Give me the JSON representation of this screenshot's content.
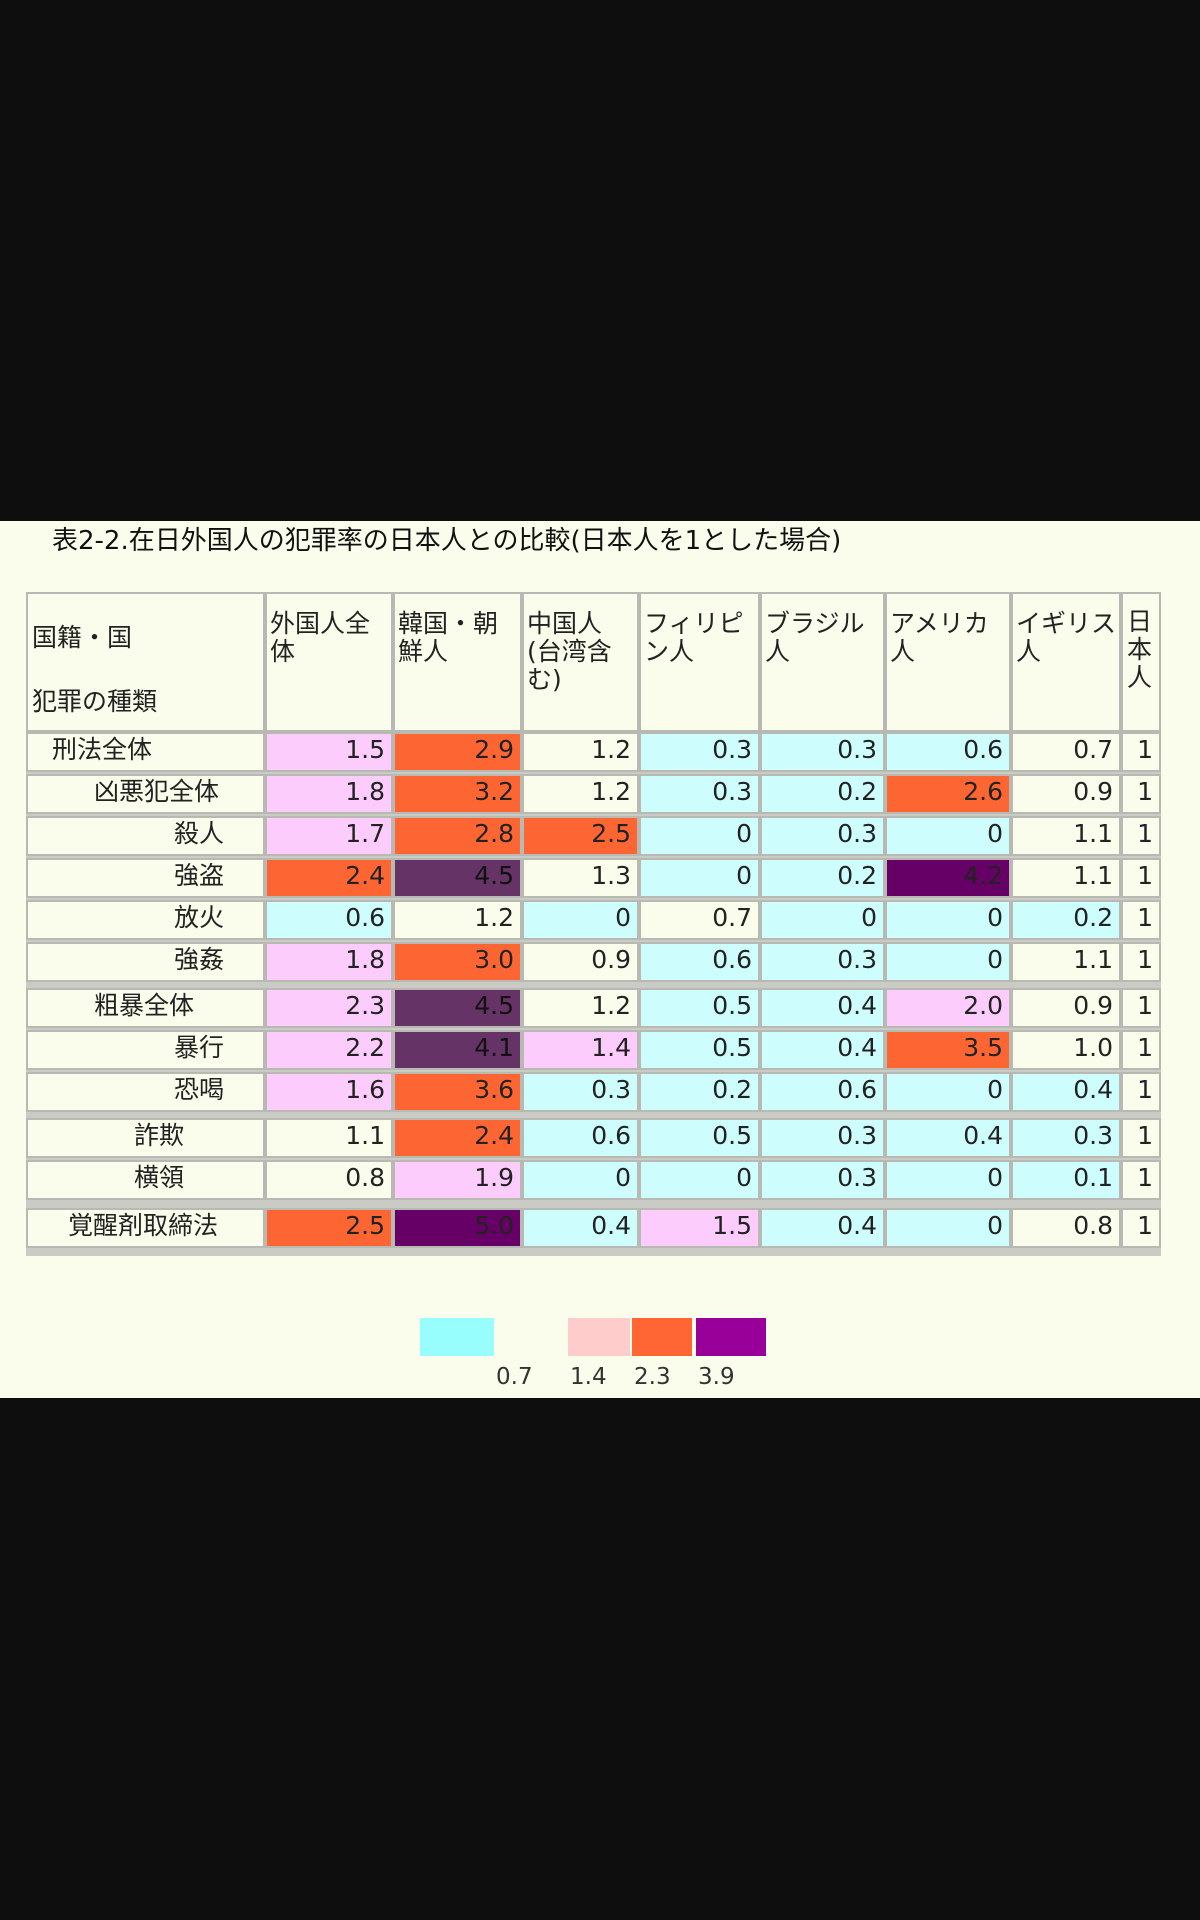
{
  "title": "表2-2.在日外国人の犯罪率の日本人との比較(日本人を1とした場合)",
  "corner": {
    "line1": "国籍・国",
    "line2": "犯罪の種類"
  },
  "columns": [
    "外国人全体",
    "韓国・朝鮮人",
    "中国人(台湾含む)",
    "フィリピン人",
    "ブラジル人",
    "アメリカ人",
    "イギリス人",
    "日本人"
  ],
  "column_header_lines": [
    [
      "外国人全",
      "体"
    ],
    [
      "韓国・朝",
      "鮮人"
    ],
    [
      "中国人",
      "(台湾含",
      "む)"
    ],
    [
      "フィリピ",
      "ン人"
    ],
    [
      "ブラジル",
      "人"
    ],
    [
      "アメリカ",
      "人"
    ],
    [
      "イギリス",
      "人"
    ],
    [
      "日",
      "本",
      "人"
    ]
  ],
  "row_labels": [
    "刑法全体",
    "凶悪犯全体",
    "殺人",
    "強盗",
    "放火",
    "強姦",
    "粗暴全体",
    "暴行",
    "恐喝",
    "詐欺",
    "横領",
    "覚醒剤取締法"
  ],
  "legend": {
    "thresholds": [
      "0.7",
      "1.4",
      "2.3",
      "3.9"
    ],
    "colors": [
      "#98fdfd",
      "#ffcccc",
      "#ff6633",
      "#990099"
    ]
  },
  "colors": {
    "cyan": "#cdfdfd",
    "pink": "#fcccfc",
    "orange": "#fd6633",
    "purple": "#653366",
    "darkpurple": "#660066",
    "plain": "#fafdeb"
  },
  "chart_data": {
    "type": "table",
    "title": "表2-2.在日外国人の犯罪率の日本人との比較(日本人を1とした場合)",
    "row_header": "犯罪の種類",
    "column_header": "国籍・国",
    "columns": [
      "外国人全体",
      "韓国・朝鮮人",
      "中国人(台湾含む)",
      "フィリピン人",
      "ブラジル人",
      "アメリカ人",
      "イギリス人",
      "日本人"
    ],
    "rows": [
      {
        "label": "刑法全体",
        "values": [
          "1.5",
          "2.9",
          "1.2",
          "0.3",
          "0.3",
          "0.6",
          "0.7",
          "1"
        ],
        "fills": [
          "pink",
          "orange",
          "plain",
          "cyan",
          "cyan",
          "cyan",
          "plain",
          "plain"
        ]
      },
      {
        "label": "凶悪犯全体",
        "values": [
          "1.8",
          "3.2",
          "1.2",
          "0.3",
          "0.2",
          "2.6",
          "0.9",
          "1"
        ],
        "fills": [
          "pink",
          "orange",
          "plain",
          "cyan",
          "cyan",
          "orange",
          "plain",
          "plain"
        ]
      },
      {
        "label": "殺人",
        "values": [
          "1.7",
          "2.8",
          "2.5",
          "0",
          "0.3",
          "0",
          "1.1",
          "1"
        ],
        "fills": [
          "pink",
          "orange",
          "orange",
          "cyan",
          "cyan",
          "cyan",
          "plain",
          "plain"
        ]
      },
      {
        "label": "強盗",
        "values": [
          "2.4",
          "4.5",
          "1.3",
          "0",
          "0.2",
          "4.2",
          "1.1",
          "1"
        ],
        "fills": [
          "orange",
          "purple",
          "plain",
          "cyan",
          "cyan",
          "darkpurple",
          "plain",
          "plain"
        ]
      },
      {
        "label": "放火",
        "values": [
          "0.6",
          "1.2",
          "0",
          "0.7",
          "0",
          "0",
          "0.2",
          "1"
        ],
        "fills": [
          "cyan",
          "plain",
          "cyan",
          "plain",
          "cyan",
          "cyan",
          "cyan",
          "plain"
        ]
      },
      {
        "label": "強姦",
        "values": [
          "1.8",
          "3.0",
          "0.9",
          "0.6",
          "0.3",
          "0",
          "1.1",
          "1"
        ],
        "fills": [
          "pink",
          "orange",
          "plain",
          "cyan",
          "cyan",
          "cyan",
          "plain",
          "plain"
        ]
      },
      {
        "label": "粗暴全体",
        "values": [
          "2.3",
          "4.5",
          "1.2",
          "0.5",
          "0.4",
          "2.0",
          "0.9",
          "1"
        ],
        "fills": [
          "pink",
          "purple",
          "plain",
          "cyan",
          "cyan",
          "pink",
          "plain",
          "plain"
        ]
      },
      {
        "label": "暴行",
        "values": [
          "2.2",
          "4.1",
          "1.4",
          "0.5",
          "0.4",
          "3.5",
          "1.0",
          "1"
        ],
        "fills": [
          "pink",
          "purple",
          "pink",
          "cyan",
          "cyan",
          "orange",
          "plain",
          "plain"
        ]
      },
      {
        "label": "恐喝",
        "values": [
          "1.6",
          "3.6",
          "0.3",
          "0.2",
          "0.6",
          "0",
          "0.4",
          "1"
        ],
        "fills": [
          "pink",
          "orange",
          "cyan",
          "cyan",
          "cyan",
          "cyan",
          "cyan",
          "plain"
        ]
      },
      {
        "label": "詐欺",
        "values": [
          "1.1",
          "2.4",
          "0.6",
          "0.5",
          "0.3",
          "0.4",
          "0.3",
          "1"
        ],
        "fills": [
          "plain",
          "orange",
          "cyan",
          "cyan",
          "cyan",
          "cyan",
          "cyan",
          "plain"
        ]
      },
      {
        "label": "横領",
        "values": [
          "0.8",
          "1.9",
          "0",
          "0",
          "0.3",
          "0",
          "0.1",
          "1"
        ],
        "fills": [
          "plain",
          "pink",
          "cyan",
          "cyan",
          "cyan",
          "cyan",
          "cyan",
          "plain"
        ]
      },
      {
        "label": "覚醒剤取締法",
        "values": [
          "2.5",
          "5.0",
          "0.4",
          "1.5",
          "0.4",
          "0",
          "0.8",
          "1"
        ],
        "fills": [
          "orange",
          "darkpurple",
          "cyan",
          "pink",
          "cyan",
          "cyan",
          "plain",
          "plain"
        ]
      }
    ]
  }
}
